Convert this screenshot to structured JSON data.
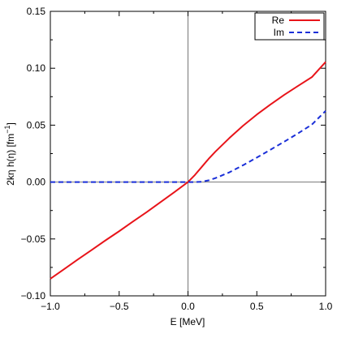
{
  "chart_data": {
    "type": "line",
    "xlabel": "E [MeV]",
    "ylabel_main": "2kη h(η) [fm",
    "ylabel_sup": "−1",
    "ylabel_end": "]",
    "xlim": [
      -1.0,
      1.0
    ],
    "ylim": [
      -0.1,
      0.15
    ],
    "xticks": [
      -1.0,
      -0.5,
      0.0,
      0.5,
      1.0
    ],
    "xtick_labels": [
      "−1.0",
      "−0.5",
      "0.0",
      "0.5",
      "1.0"
    ],
    "yticks": [
      -0.1,
      -0.05,
      0.0,
      0.05,
      0.1,
      0.15
    ],
    "ytick_labels": [
      "−0.10",
      "−0.05",
      "0.00",
      "0.05",
      "0.10",
      "0.15"
    ],
    "zero_lines": true,
    "grid": false,
    "legend_position": "top-right",
    "series": [
      {
        "name": "Re",
        "color": "#e8141a",
        "dash": "solid",
        "x": [
          -1.0,
          -0.9,
          -0.8,
          -0.7,
          -0.6,
          -0.5,
          -0.4,
          -0.3,
          -0.2,
          -0.1,
          0.0,
          0.05,
          0.1,
          0.15,
          0.2,
          0.3,
          0.4,
          0.5,
          0.6,
          0.7,
          0.8,
          0.9,
          1.0
        ],
        "y": [
          -0.085,
          -0.0765,
          -0.068,
          -0.0597,
          -0.0513,
          -0.0432,
          -0.0347,
          -0.0264,
          -0.0177,
          -0.009,
          0.0,
          0.0062,
          0.0133,
          0.0204,
          0.0268,
          0.0386,
          0.0495,
          0.0593,
          0.0682,
          0.0767,
          0.0845,
          0.0922,
          0.1055
        ]
      },
      {
        "name": "Im",
        "color": "#1a2fd8",
        "dash": "dashed",
        "x": [
          -1.0,
          -0.5,
          0.0,
          0.05,
          0.1,
          0.15,
          0.2,
          0.3,
          0.4,
          0.5,
          0.6,
          0.7,
          0.8,
          0.9,
          1.0
        ],
        "y": [
          0.0,
          0.0,
          0.0,
          0.0,
          0.0003,
          0.0015,
          0.0035,
          0.0085,
          0.0148,
          0.0215,
          0.0285,
          0.0355,
          0.0428,
          0.0505,
          0.0625
        ]
      }
    ]
  }
}
